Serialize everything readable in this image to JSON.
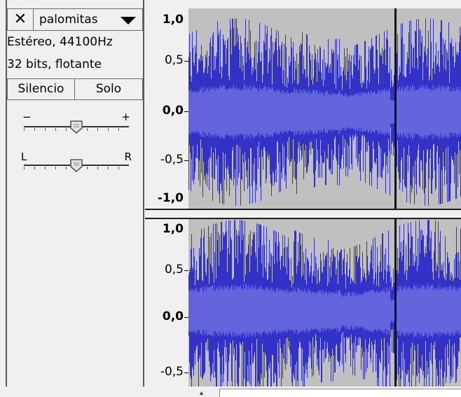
{
  "track": {
    "close_icon": "close-icon",
    "name": "palomitas",
    "dropdown_icon": "triangle-down-icon",
    "format_line": "Estéreo, 44100Hz",
    "bits_line": "32 bits, flotante",
    "mute_label": "Silencio",
    "solo_label": "Solo",
    "gain": {
      "minus": "−",
      "plus": "+",
      "value": 0.5
    },
    "pan": {
      "left": "L",
      "right": "R",
      "value": 0.5
    }
  },
  "ruler_top": {
    "max": "1,0",
    "p05": "0,5",
    "zero": "0,0",
    "m05": "-0,5",
    "min": "-1,0"
  },
  "ruler_bottom": {
    "max": "1,0",
    "p05": "0,5",
    "zero": "0,0",
    "m05": "-0,5"
  },
  "colors": {
    "waveform": "#3232c8",
    "waveform_rms": "#6464dc",
    "background": "#c0c0c0",
    "cursor": "#151515"
  },
  "cursor_fraction": 0.757
}
